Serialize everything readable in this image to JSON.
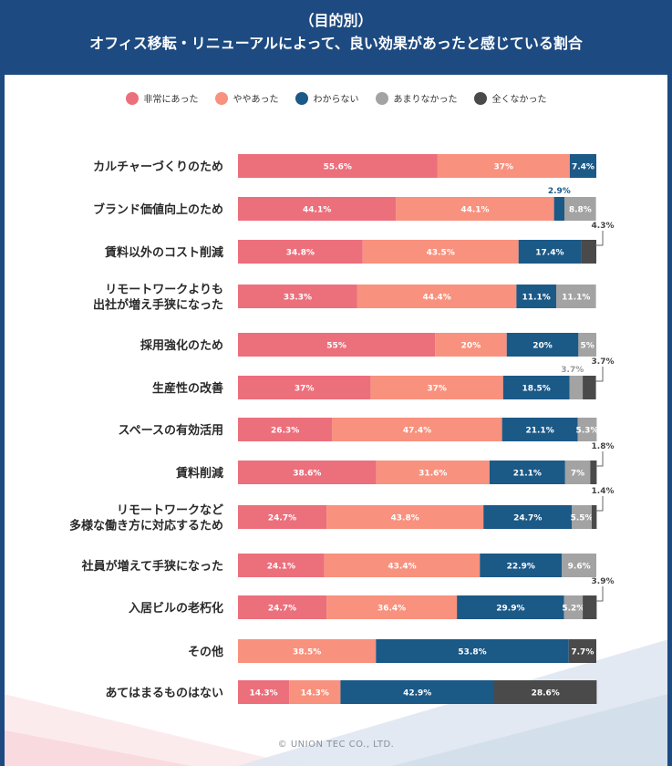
{
  "title": {
    "line1": "（目的別）",
    "line2": "オフィス移転・リニューアルによって、良い効果があったと感じている割合"
  },
  "footer": "© UNION TEC CO., LTD.",
  "colors": {
    "frame": "#1d4a80",
    "series": [
      "#ec6f7c",
      "#f8917d",
      "#1b5987",
      "#a3a3a3",
      "#4a4a4a"
    ],
    "label_on_light": "#1b5987",
    "label_gray": "#999999"
  },
  "chart_data": {
    "type": "bar",
    "orientation": "horizontal",
    "stacked": true,
    "xlim": [
      0,
      100
    ],
    "legend_position": "top",
    "categories": [
      [
        "カルチャーづくりのため"
      ],
      [
        "ブランド価値向上のため"
      ],
      [
        "賃料以外のコスト削減"
      ],
      [
        "リモートワークよりも",
        "出社が増え手狭になった"
      ],
      [
        "採用強化のため"
      ],
      [
        "生産性の改善"
      ],
      [
        "スペースの有効活用"
      ],
      [
        "賃料削減"
      ],
      [
        "リモートワークなど",
        "多様な働き方に対応するため"
      ],
      [
        "社員が増えて手狭になった"
      ],
      [
        "入居ビルの老朽化"
      ],
      [
        "その他"
      ],
      [
        "あてはまるものはない"
      ]
    ],
    "series": [
      {
        "name": "非常にあった",
        "values": [
          55.6,
          44.1,
          34.8,
          33.3,
          55,
          37,
          26.3,
          38.6,
          24.7,
          24.1,
          24.7,
          0,
          14.3
        ],
        "labels": [
          "55.6%",
          "44.1%",
          "34.8%",
          "33.3%",
          "55%",
          "37%",
          "26.3%",
          "38.6%",
          "24.7%",
          "24.1%",
          "24.7%",
          "",
          "14.3%"
        ]
      },
      {
        "name": "ややあった",
        "values": [
          37,
          44.1,
          43.5,
          44.4,
          20,
          37,
          47.4,
          31.6,
          43.8,
          43.4,
          36.4,
          38.5,
          14.3
        ],
        "labels": [
          "37%",
          "44.1%",
          "43.5%",
          "44.4%",
          "20%",
          "37%",
          "47.4%",
          "31.6%",
          "43.8%",
          "43.4%",
          "36.4%",
          "38.5%",
          "14.3%"
        ]
      },
      {
        "name": "わからない",
        "values": [
          7.4,
          2.9,
          17.4,
          11.1,
          20,
          18.5,
          21.1,
          21.1,
          24.7,
          22.9,
          29.9,
          53.8,
          42.9
        ],
        "labels": [
          "7.4%",
          "2.9%",
          "17.4%",
          "11.1%",
          "20%",
          "18.5%",
          "21.1%",
          "21.1%",
          "24.7%",
          "22.9%",
          "29.9%",
          "53.8%",
          "42.9%"
        ]
      },
      {
        "name": "あまりなかった",
        "values": [
          0,
          8.8,
          0,
          11.1,
          5,
          3.7,
          5.3,
          7,
          5.5,
          9.6,
          5.2,
          0,
          0
        ],
        "labels": [
          "",
          "8.8%",
          "",
          "11.1%",
          "5%",
          "3.7%",
          "5.3%",
          "7%",
          "5.5%",
          "9.6%",
          "5.2%",
          "",
          ""
        ]
      },
      {
        "name": "全くなかった",
        "values": [
          0,
          0,
          4.3,
          0,
          0,
          3.7,
          0,
          1.8,
          1.4,
          0,
          3.9,
          7.7,
          28.6
        ],
        "labels": [
          "",
          "",
          "4.3%",
          "",
          "",
          "3.7%",
          "",
          "1.8%",
          "1.4%",
          "",
          "3.9%",
          "7.7%",
          "28.6%"
        ]
      }
    ]
  }
}
